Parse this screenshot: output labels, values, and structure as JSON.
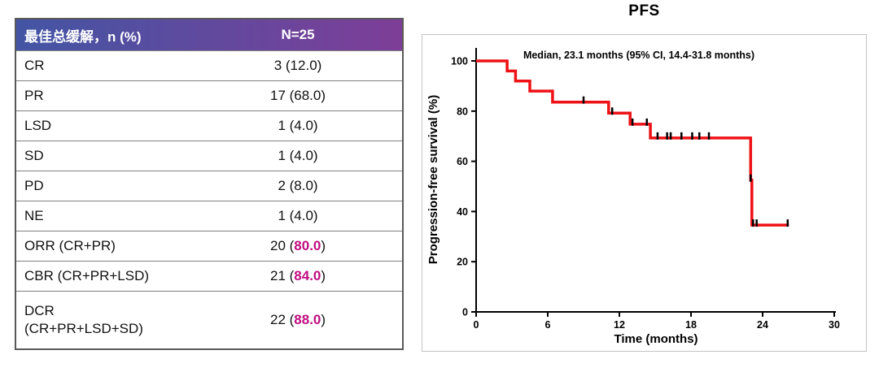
{
  "table": {
    "header": {
      "label": "最佳总缓解，n (%)",
      "value": "N=25"
    },
    "header_gradient": [
      "#4355a4",
      "#7e3e98"
    ],
    "highlight_color": "#c00d81",
    "rows": [
      {
        "label": "CR",
        "label2": "",
        "n": "3",
        "pct": "12.0",
        "highlight": false
      },
      {
        "label": "PR",
        "label2": "",
        "n": "17",
        "pct": "68.0",
        "highlight": false
      },
      {
        "label": "LSD",
        "label2": "",
        "n": "1",
        "pct": "4.0",
        "highlight": false
      },
      {
        "label": "SD",
        "label2": "",
        "n": "1",
        "pct": "4.0",
        "highlight": false
      },
      {
        "label": "PD",
        "label2": "",
        "n": "2",
        "pct": "8.0",
        "highlight": false
      },
      {
        "label": "NE",
        "label2": "",
        "n": "1",
        "pct": "4.0",
        "highlight": false
      },
      {
        "label": "ORR (CR+PR)",
        "label2": "",
        "n": "20",
        "pct": "80.0",
        "highlight": true
      },
      {
        "label": "CBR (CR+PR+LSD)",
        "label2": "",
        "n": "21",
        "pct": "84.0",
        "highlight": true
      },
      {
        "label": "DCR",
        "label2": "(CR+PR+LSD+SD)",
        "n": "22",
        "pct": "88.0",
        "highlight": true
      }
    ]
  },
  "chart_data": {
    "type": "line",
    "subtype": "kaplan-meier-step",
    "title": "PFS",
    "annotation": "Median, 23.1 months (95% CI, 14.4-31.8 months)",
    "median_months": 23.1,
    "ci_95_months": "14.4-31.8",
    "xlabel": "Time (months)",
    "ylabel": "Progression-free survival (%)",
    "xlim": [
      0,
      30
    ],
    "ylim": [
      0,
      100
    ],
    "xticks": [
      0,
      6,
      12,
      18,
      24,
      30
    ],
    "yticks": [
      0,
      20,
      40,
      60,
      80,
      100
    ],
    "grid": false,
    "legend": false,
    "line_color": "#ee1216",
    "axis_color": "#000000",
    "km_steps": [
      [
        0,
        100
      ],
      [
        2.6,
        100
      ],
      [
        2.6,
        96
      ],
      [
        3.3,
        96
      ],
      [
        3.3,
        92
      ],
      [
        4.5,
        92
      ],
      [
        4.5,
        88
      ],
      [
        6.4,
        88
      ],
      [
        6.4,
        83.6
      ],
      [
        11.1,
        83.6
      ],
      [
        11.1,
        79.2
      ],
      [
        12.9,
        79.2
      ],
      [
        12.9,
        74.8
      ],
      [
        14.6,
        74.8
      ],
      [
        14.6,
        69.3
      ],
      [
        23.0,
        69.3
      ],
      [
        23.0,
        52.5
      ],
      [
        23.1,
        52.5
      ],
      [
        23.1,
        34.6
      ],
      [
        26.2,
        34.6
      ]
    ],
    "censor_marks": [
      [
        9.0,
        83.6
      ],
      [
        11.4,
        79.2
      ],
      [
        13.1,
        74.8
      ],
      [
        14.3,
        74.8
      ],
      [
        15.2,
        69.3
      ],
      [
        16.0,
        69.3
      ],
      [
        16.3,
        69.3
      ],
      [
        17.2,
        69.3
      ],
      [
        18.1,
        69.3
      ],
      [
        18.7,
        69.3
      ],
      [
        19.5,
        69.3
      ],
      [
        23.0,
        52.5
      ],
      [
        23.2,
        34.6
      ],
      [
        23.5,
        34.6
      ],
      [
        26.1,
        34.6
      ]
    ]
  }
}
